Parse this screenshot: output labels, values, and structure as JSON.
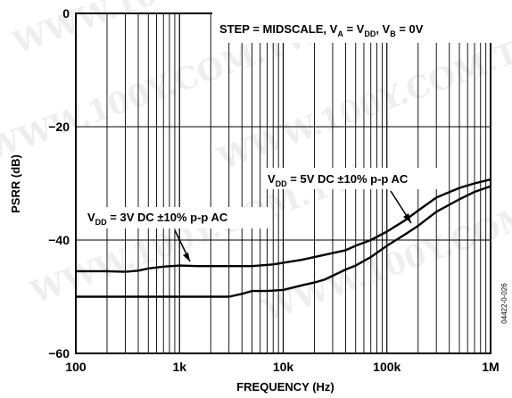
{
  "chart_data": {
    "type": "line",
    "title": "",
    "xlabel": "FREQUENCY (Hz)",
    "ylabel": "PSRR (dB)",
    "xscale": "log",
    "xlim": [
      100,
      1000000
    ],
    "ylim": [
      -60,
      0
    ],
    "grid": true,
    "x_ticks": [
      100,
      1000,
      10000,
      100000,
      1000000
    ],
    "x_tick_labels": [
      "100",
      "1k",
      "10k",
      "100k",
      "1M"
    ],
    "y_ticks": [
      0,
      -20,
      -40,
      -60
    ],
    "y_tick_labels": [
      "0",
      "−20",
      "−40",
      "−60"
    ],
    "annotations": {
      "header": {
        "prefix": "STEP = MIDSCALE, V",
        "sub_a": "A",
        "mid1": " = V",
        "sub_dd": "DD",
        "mid2": ", V",
        "sub_b": "B",
        "suffix": " = 0V"
      },
      "curve_5v": {
        "v": "V",
        "sub": "DD",
        "text": " = 5V DC ±10% p-p AC"
      },
      "curve_3v": {
        "v": "V",
        "sub": "DD",
        "text": " = 3V DC ±10% p-p AC"
      }
    },
    "figure_id": "04422-0-026",
    "series": [
      {
        "x": [
          100,
          200,
          300,
          400,
          500,
          700,
          1000,
          1500,
          2000,
          3000,
          5000,
          8000,
          10000,
          15000,
          20000,
          30000,
          40000,
          50000,
          70000,
          100000,
          150000,
          200000,
          300000,
          500000,
          700000,
          1000000
        ],
        "values": [
          -45.5,
          -45.5,
          -45.6,
          -45.4,
          -45.0,
          -44.7,
          -44.5,
          -44.6,
          -44.6,
          -44.6,
          -44.6,
          -44.3,
          -44.0,
          -43.5,
          -43.0,
          -42.3,
          -41.8,
          -41.0,
          -40.0,
          -38.5,
          -36.5,
          -34.8,
          -32.5,
          -30.8,
          -30.0,
          -29.3
        ]
      },
      {
        "x": [
          100,
          200,
          300,
          500,
          1000,
          2000,
          3000,
          4000,
          5000,
          7000,
          10000,
          15000,
          20000,
          25000,
          30000,
          40000,
          50000,
          70000,
          100000,
          150000,
          200000,
          300000,
          500000,
          700000,
          1000000
        ],
        "values": [
          -50.0,
          -50.0,
          -50.0,
          -50.0,
          -50.0,
          -50.0,
          -50.0,
          -49.5,
          -49.0,
          -49.0,
          -48.8,
          -48.0,
          -47.5,
          -47.0,
          -46.3,
          -45.2,
          -44.5,
          -43.0,
          -41.0,
          -39.0,
          -37.5,
          -35.0,
          -32.8,
          -31.5,
          -30.5
        ]
      }
    ]
  }
}
